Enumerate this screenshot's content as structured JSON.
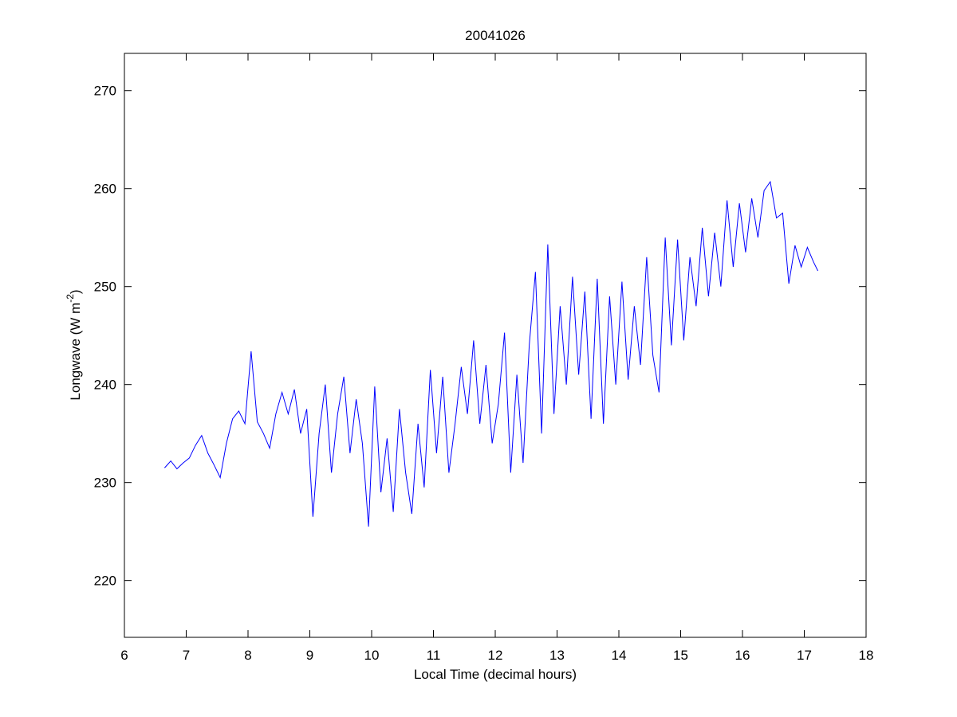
{
  "chart_data": {
    "type": "line",
    "title": "20041026",
    "xlabel": "Local Time (decimal hours)",
    "ylabel_parts": [
      "Longwave (W m",
      "-2",
      ")"
    ],
    "xlim": [
      6,
      18
    ],
    "ylim": [
      214.2,
      273.8
    ],
    "xticks": [
      6,
      7,
      8,
      9,
      10,
      11,
      12,
      13,
      14,
      15,
      16,
      17,
      18
    ],
    "yticks": [
      220,
      230,
      240,
      250,
      260,
      270
    ],
    "grid": false,
    "series": [
      {
        "color": "#0000ff",
        "x": [
          6.65,
          6.75,
          6.85,
          6.95,
          7.05,
          7.15,
          7.25,
          7.35,
          7.45,
          7.55,
          7.65,
          7.75,
          7.85,
          7.95,
          8.05,
          8.15,
          8.25,
          8.35,
          8.45,
          8.55,
          8.65,
          8.75,
          8.85,
          8.95,
          9.05,
          9.15,
          9.25,
          9.35,
          9.45,
          9.55,
          9.65,
          9.75,
          9.85,
          9.95,
          10.05,
          10.15,
          10.25,
          10.35,
          10.45,
          10.55,
          10.65,
          10.75,
          10.85,
          10.95,
          11.05,
          11.15,
          11.25,
          11.35,
          11.45,
          11.55,
          11.65,
          11.75,
          11.85,
          11.95,
          12.05,
          12.15,
          12.25,
          12.35,
          12.45,
          12.55,
          12.65,
          12.75,
          12.85,
          12.95,
          13.05,
          13.15,
          13.25,
          13.35,
          13.45,
          13.55,
          13.65,
          13.75,
          13.85,
          13.95,
          14.05,
          14.15,
          14.25,
          14.35,
          14.45,
          14.55,
          14.65,
          14.75,
          14.85,
          14.95,
          15.05,
          15.15,
          15.25,
          15.35,
          15.45,
          15.55,
          15.65,
          15.75,
          15.85,
          15.95,
          16.05,
          16.15,
          16.25,
          16.35,
          16.45,
          16.55,
          16.65,
          16.75,
          16.85,
          16.95,
          17.05,
          17.15,
          17.22
        ],
        "values": [
          231.5,
          232.2,
          231.4,
          232.0,
          232.5,
          233.8,
          234.8,
          233.0,
          231.8,
          230.5,
          234.0,
          236.5,
          237.3,
          236.0,
          243.4,
          236.2,
          235.0,
          233.5,
          237.0,
          239.2,
          237.0,
          239.5,
          235.0,
          237.5,
          226.5,
          235.0,
          240.0,
          231.0,
          237.0,
          240.8,
          233.0,
          238.5,
          234.0,
          225.5,
          239.8,
          229.0,
          234.5,
          227.0,
          237.5,
          231.0,
          226.8,
          236.0,
          229.5,
          241.5,
          233.0,
          240.8,
          231.0,
          236.0,
          241.8,
          237.0,
          244.5,
          236.0,
          242.0,
          234.0,
          238.0,
          245.3,
          231.0,
          241.0,
          232.0,
          244.0,
          251.5,
          235.0,
          254.3,
          237.0,
          248.0,
          240.0,
          251.0,
          241.0,
          249.5,
          236.5,
          250.8,
          236.0,
          249.0,
          240.0,
          250.5,
          240.5,
          248.0,
          242.0,
          253.0,
          243.0,
          239.2,
          255.0,
          244.0,
          254.8,
          244.5,
          253.0,
          248.0,
          256.0,
          249.0,
          255.5,
          250.0,
          258.8,
          252.0,
          258.5,
          253.5,
          259.0,
          255.0,
          259.8,
          260.7,
          257.0,
          257.5,
          250.3,
          254.2,
          252.0,
          254.0,
          252.5,
          251.6
        ]
      }
    ]
  }
}
